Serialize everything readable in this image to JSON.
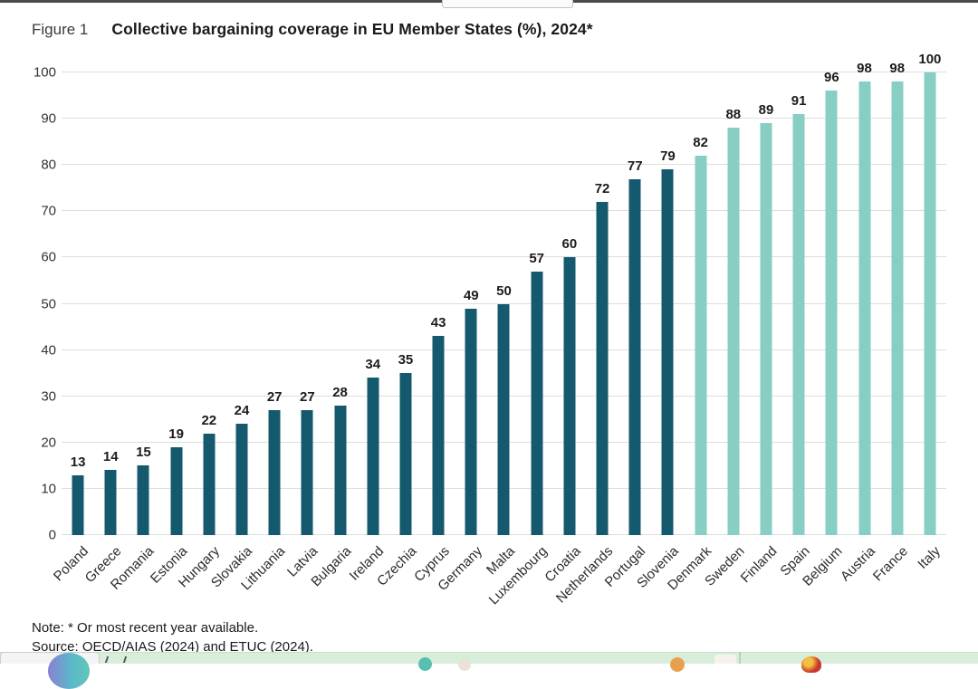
{
  "figure": {
    "label": "Figure 1",
    "note": "Note: * Or most recent year available.",
    "source": "Source: OECD/AIAS (2024) and ETUC (2024)."
  },
  "chart_data": {
    "type": "bar",
    "title": "Collective bargaining coverage in EU Member States (%), 2024*",
    "categories": [
      "Poland",
      "Greece",
      "Romania",
      "Estonia",
      "Hungary",
      "Slovakia",
      "Lithuania",
      "Latvia",
      "Bulgaria",
      "Ireland",
      "Czechia",
      "Cyprus",
      "Germany",
      "Malta",
      "Luxembourg",
      "Croatia",
      "Netherlands",
      "Portugal",
      "Slovenia",
      "Denmark",
      "Sweden",
      "Finland",
      "Spain",
      "Belgium",
      "Austria",
      "France",
      "Italy"
    ],
    "values": [
      13,
      14,
      15,
      19,
      22,
      24,
      27,
      27,
      28,
      34,
      35,
      43,
      49,
      50,
      57,
      60,
      72,
      77,
      79,
      82,
      88,
      89,
      91,
      96,
      98,
      98,
      100
    ],
    "value_labels": true,
    "xlabel": "",
    "ylabel": "",
    "ylim": [
      0,
      100
    ],
    "ytick_step": 10,
    "grid": "horizontal",
    "legend": "none",
    "colors": {
      "dark_bar": "#15596e",
      "light_bar": "#87cec3"
    },
    "dark_bar_count": 19
  }
}
